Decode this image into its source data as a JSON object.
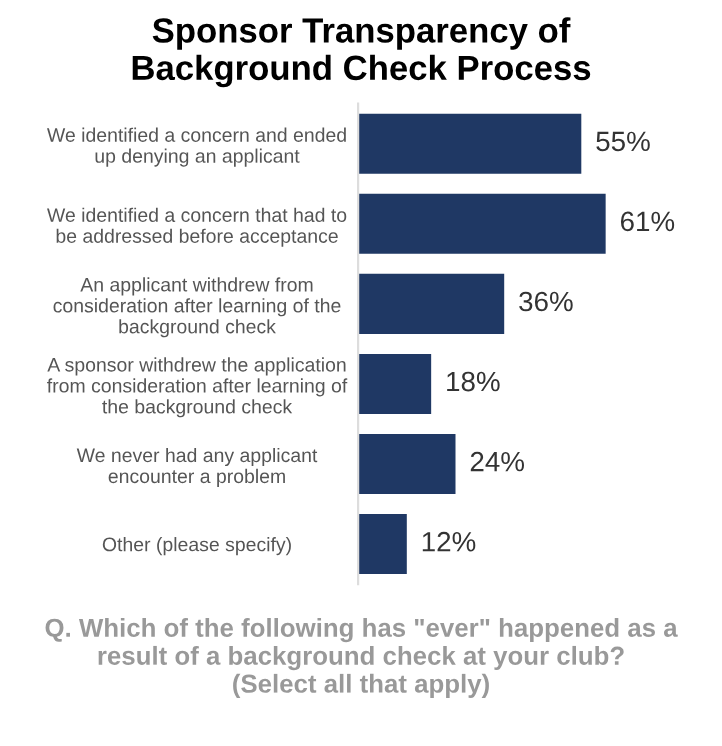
{
  "chart_data": {
    "type": "bar",
    "orientation": "horizontal",
    "title": "Sponsor Transparency of\nBackground Check Process",
    "categories": [
      "We identified a concern and ended\nup denying an applicant",
      "We identified a concern that had to\nbe addressed before acceptance",
      "An applicant withdrew from\nconsideration after learning of the\nbackground check",
      "A sponsor withdrew the application\nfrom consideration after learning of\nthe background check",
      "We never had any applicant\nencounter a problem",
      "Other (please specify)"
    ],
    "values": [
      55,
      61,
      36,
      18,
      24,
      12
    ],
    "value_labels": [
      "55%",
      "61%",
      "36%",
      "18%",
      "24%",
      "12%"
    ],
    "color": "#1f3864",
    "tick_labels": "y",
    "grid": false,
    "legend": false,
    "annotations": [
      "Q. Which of the following has \"ever\" happened as a\nresult of a background check at your club?\n(Select all that apply)"
    ]
  }
}
